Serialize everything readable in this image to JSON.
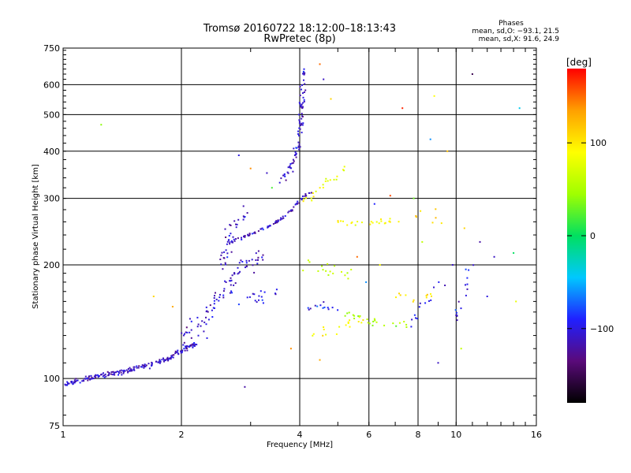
{
  "chart_data": {
    "type": "scatter",
    "title": "Tromsø 20160722 18:12:00–18:13:43",
    "subtitle": "RwPretec (8p)",
    "xlabel": "Frequency [MHz]",
    "ylabel": "Stationary phase Virtual Height [km]",
    "x_scale": "log",
    "y_scale": "log",
    "xlim": [
      1,
      16
    ],
    "ylim": [
      75,
      750
    ],
    "x_ticks": [
      1,
      2,
      4,
      6,
      8,
      10,
      16
    ],
    "x_tick_labels": [
      "1",
      "2",
      "4",
      "6",
      "8",
      "10",
      "16"
    ],
    "y_ticks": [
      75,
      100,
      200,
      300,
      400,
      500,
      600,
      750
    ],
    "y_tick_labels": [
      "75",
      "100",
      "200",
      "300",
      "400",
      "500",
      "600",
      "750"
    ],
    "grid": true,
    "phase_info": {
      "heading": "Phases",
      "line_o": "mean, sd,O: −93.1, 21.5",
      "line_x": "mean, sd,X:  91.6, 24.9"
    },
    "colorbar": {
      "label": "[deg]",
      "range": [
        -180,
        180
      ],
      "ticks": [
        100,
        0,
        -100
      ],
      "tick_labels": [
        "100",
        "0",
        "−100"
      ],
      "colors": [
        "#000000",
        "#5a0a7a",
        "#2020ff",
        "#00c8ff",
        "#00e060",
        "#a0ff00",
        "#ffff00",
        "#ffa000",
        "#ff0000"
      ]
    },
    "traces": [
      {
        "phase": -110,
        "density": 11,
        "spread": 0.05,
        "points": [
          [
            1.0,
            96
          ],
          [
            1.1,
            99
          ],
          [
            1.2,
            101
          ],
          [
            1.35,
            103
          ],
          [
            1.5,
            106
          ],
          [
            1.7,
            109
          ],
          [
            1.85,
            113
          ],
          [
            2.0,
            118
          ],
          [
            2.2,
            125
          ]
        ]
      },
      {
        "phase": -110,
        "density": 6,
        "spread": 0.22,
        "points": [
          [
            2.0,
            125
          ],
          [
            2.3,
            145
          ],
          [
            2.5,
            165
          ],
          [
            2.7,
            185
          ],
          [
            2.9,
            200
          ],
          [
            3.2,
            215
          ]
        ]
      },
      {
        "phase": -108,
        "density": 4,
        "spread": 0.14,
        "points": [
          [
            2.5,
            190
          ],
          [
            2.6,
            220
          ],
          [
            2.7,
            250
          ],
          [
            2.8,
            265
          ],
          [
            2.95,
            280
          ]
        ]
      },
      {
        "phase": -112,
        "density": 6,
        "spread": 0.03,
        "points": [
          [
            2.6,
            228
          ],
          [
            2.9,
            238
          ],
          [
            3.2,
            248
          ],
          [
            3.5,
            260
          ],
          [
            3.8,
            278
          ],
          [
            4.05,
            300
          ],
          [
            4.3,
            315
          ]
        ]
      },
      {
        "phase": -108,
        "density": 6,
        "spread": 0.07,
        "points": [
          [
            3.6,
            330
          ],
          [
            3.85,
            370
          ],
          [
            4.0,
            430
          ],
          [
            4.05,
            500
          ],
          [
            4.08,
            600
          ],
          [
            4.1,
            650
          ]
        ]
      },
      {
        "phase": -100,
        "density": 3,
        "spread": 0.16,
        "points": [
          [
            2.8,
            160
          ],
          [
            3.2,
            165
          ],
          [
            3.6,
            170
          ]
        ]
      },
      {
        "phase": 85,
        "density": 3,
        "spread": 0.08,
        "points": [
          [
            4.1,
            290
          ],
          [
            4.5,
            320
          ],
          [
            4.9,
            340
          ],
          [
            5.2,
            360
          ]
        ]
      },
      {
        "phase": 90,
        "density": 3,
        "spread": 0.06,
        "points": [
          [
            5.0,
            260
          ],
          [
            5.8,
            258
          ],
          [
            6.6,
            262
          ],
          [
            7.2,
            264
          ]
        ]
      },
      {
        "phase": 50,
        "density": 3,
        "spread": 0.08,
        "points": [
          [
            5.2,
            150
          ],
          [
            6.0,
            142
          ],
          [
            6.8,
            140
          ],
          [
            7.5,
            138
          ]
        ]
      },
      {
        "phase": -95,
        "density": 3,
        "spread": 0.1,
        "points": [
          [
            4.1,
            150
          ],
          [
            4.5,
            155
          ],
          [
            5.0,
            152
          ]
        ]
      },
      {
        "phase": 60,
        "density": 3,
        "spread": 0.12,
        "points": [
          [
            4.2,
            200
          ],
          [
            4.8,
            195
          ],
          [
            5.4,
            190
          ]
        ]
      },
      {
        "phase": 90,
        "density": 2,
        "spread": 0.12,
        "points": [
          [
            4.3,
            130
          ],
          [
            5.2,
            138
          ],
          [
            6.2,
            148
          ]
        ]
      },
      {
        "phase": 100,
        "density": 2,
        "spread": 0.14,
        "points": [
          [
            7.0,
            170
          ],
          [
            8.0,
            165
          ],
          [
            9.0,
            165
          ]
        ]
      },
      {
        "phase": -100,
        "density": 2,
        "spread": 0.14,
        "points": [
          [
            7.5,
            140
          ],
          [
            8.5,
            160
          ],
          [
            9.2,
            175
          ]
        ]
      },
      {
        "phase": 120,
        "density": 2,
        "spread": 0.12,
        "points": [
          [
            8.0,
            270
          ],
          [
            8.6,
            280
          ],
          [
            9.2,
            260
          ]
        ]
      },
      {
        "phase": -95,
        "density": 2,
        "spread": 0.12,
        "points": [
          [
            10.0,
            140
          ],
          [
            10.5,
            175
          ],
          [
            11.0,
            200
          ]
        ]
      }
    ],
    "scatter": [
      [
        1.25,
        470,
        40
      ],
      [
        4.5,
        680,
        150
      ],
      [
        4.6,
        620,
        -110
      ],
      [
        4.8,
        550,
        110
      ],
      [
        7.3,
        520,
        170
      ],
      [
        8.8,
        560,
        90
      ],
      [
        11.0,
        640,
        -150
      ],
      [
        14.5,
        520,
        -40
      ],
      [
        8.6,
        430,
        -60
      ],
      [
        12.5,
        210,
        -110
      ],
      [
        14.0,
        215,
        0
      ],
      [
        14.2,
        160,
        80
      ],
      [
        12.0,
        165,
        -100
      ],
      [
        9.5,
        400,
        120
      ],
      [
        6.8,
        305,
        160
      ],
      [
        6.2,
        290,
        -90
      ],
      [
        7.8,
        300,
        30
      ],
      [
        10.5,
        250,
        110
      ],
      [
        11.5,
        230,
        -120
      ],
      [
        5.6,
        210,
        150
      ],
      [
        5.9,
        180,
        -60
      ],
      [
        6.4,
        200,
        90
      ],
      [
        8.2,
        230,
        60
      ],
      [
        9.8,
        200,
        -110
      ],
      [
        10.3,
        120,
        60
      ],
      [
        9.0,
        110,
        -110
      ],
      [
        4.5,
        112,
        130
      ],
      [
        3.8,
        120,
        140
      ],
      [
        2.9,
        95,
        -120
      ],
      [
        1.9,
        155,
        130
      ],
      [
        1.7,
        165,
        110
      ],
      [
        3.4,
        320,
        20
      ],
      [
        3.0,
        360,
        140
      ],
      [
        2.8,
        390,
        -100
      ],
      [
        3.3,
        350,
        -110
      ]
    ]
  }
}
